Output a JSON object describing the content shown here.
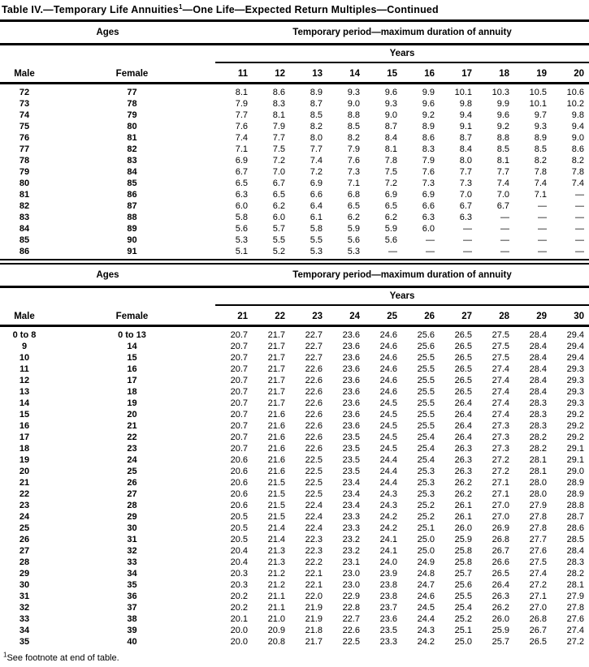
{
  "title": {
    "prefix": "Table IV.—Temporary Life Annuities",
    "superscript": "1",
    "suffix": "—One Life—Expected Return Multiples—Continued"
  },
  "header_labels": {
    "ages": "Ages",
    "period": "Temporary period—maximum duration of annuity",
    "years": "Years",
    "male": "Male",
    "female": "Female"
  },
  "footnote": {
    "superscript": "1",
    "text": "See footnote at end of table."
  },
  "colors": {
    "text": "#000000",
    "background": "#ffffff",
    "rule": "#000000"
  },
  "tables": [
    {
      "years": [
        "11",
        "12",
        "13",
        "14",
        "15",
        "16",
        "17",
        "18",
        "19",
        "20"
      ],
      "rows": [
        {
          "male": "72",
          "female": "77",
          "values": [
            "8.1",
            "8.6",
            "8.9",
            "9.3",
            "9.6",
            "9.9",
            "10.1",
            "10.3",
            "10.5",
            "10.6"
          ]
        },
        {
          "male": "73",
          "female": "78",
          "values": [
            "7.9",
            "8.3",
            "8.7",
            "9.0",
            "9.3",
            "9.6",
            "9.8",
            "9.9",
            "10.1",
            "10.2"
          ]
        },
        {
          "male": "74",
          "female": "79",
          "values": [
            "7.7",
            "8.1",
            "8.5",
            "8.8",
            "9.0",
            "9.2",
            "9.4",
            "9.6",
            "9.7",
            "9.8"
          ]
        },
        {
          "male": "75",
          "female": "80",
          "values": [
            "7.6",
            "7.9",
            "8.2",
            "8.5",
            "8.7",
            "8.9",
            "9.1",
            "9.2",
            "9.3",
            "9.4"
          ]
        },
        {
          "male": "76",
          "female": "81",
          "values": [
            "7.4",
            "7.7",
            "8.0",
            "8.2",
            "8.4",
            "8.6",
            "8.7",
            "8.8",
            "8.9",
            "9.0"
          ]
        },
        {
          "male": "77",
          "female": "82",
          "values": [
            "7.1",
            "7.5",
            "7.7",
            "7.9",
            "8.1",
            "8.3",
            "8.4",
            "8.5",
            "8.5",
            "8.6"
          ]
        },
        {
          "male": "78",
          "female": "83",
          "values": [
            "6.9",
            "7.2",
            "7.4",
            "7.6",
            "7.8",
            "7.9",
            "8.0",
            "8.1",
            "8.2",
            "8.2"
          ]
        },
        {
          "male": "79",
          "female": "84",
          "values": [
            "6.7",
            "7.0",
            "7.2",
            "7.3",
            "7.5",
            "7.6",
            "7.7",
            "7.7",
            "7.8",
            "7.8"
          ]
        },
        {
          "male": "80",
          "female": "85",
          "values": [
            "6.5",
            "6.7",
            "6.9",
            "7.1",
            "7.2",
            "7.3",
            "7.3",
            "7.4",
            "7.4",
            "7.4"
          ]
        },
        {
          "male": "81",
          "female": "86",
          "values": [
            "6.3",
            "6.5",
            "6.6",
            "6.8",
            "6.9",
            "6.9",
            "7.0",
            "7.0",
            "7.1",
            "—"
          ]
        },
        {
          "male": "82",
          "female": "87",
          "values": [
            "6.0",
            "6.2",
            "6.4",
            "6.5",
            "6.5",
            "6.6",
            "6.7",
            "6.7",
            "—",
            "—"
          ]
        },
        {
          "male": "83",
          "female": "88",
          "values": [
            "5.8",
            "6.0",
            "6.1",
            "6.2",
            "6.2",
            "6.3",
            "6.3",
            "—",
            "—",
            "—"
          ]
        },
        {
          "male": "84",
          "female": "89",
          "values": [
            "5.6",
            "5.7",
            "5.8",
            "5.9",
            "5.9",
            "6.0",
            "—",
            "—",
            "—",
            "—"
          ]
        },
        {
          "male": "85",
          "female": "90",
          "values": [
            "5.3",
            "5.5",
            "5.5",
            "5.6",
            "5.6",
            "—",
            "—",
            "—",
            "—",
            "—"
          ]
        },
        {
          "male": "86",
          "female": "91",
          "values": [
            "5.1",
            "5.2",
            "5.3",
            "5.3",
            "—",
            "—",
            "—",
            "—",
            "—",
            "—"
          ]
        }
      ]
    },
    {
      "years": [
        "21",
        "22",
        "23",
        "24",
        "25",
        "26",
        "27",
        "28",
        "29",
        "30"
      ],
      "rows": [
        {
          "male": "0 to 8",
          "female": "0 to 13",
          "values": [
            "20.7",
            "21.7",
            "22.7",
            "23.6",
            "24.6",
            "25.6",
            "26.5",
            "27.5",
            "28.4",
            "29.4"
          ]
        },
        {
          "male": "9",
          "female": "14",
          "values": [
            "20.7",
            "21.7",
            "22.7",
            "23.6",
            "24.6",
            "25.6",
            "26.5",
            "27.5",
            "28.4",
            "29.4"
          ]
        },
        {
          "male": "10",
          "female": "15",
          "values": [
            "20.7",
            "21.7",
            "22.7",
            "23.6",
            "24.6",
            "25.5",
            "26.5",
            "27.5",
            "28.4",
            "29.4"
          ]
        },
        {
          "male": "11",
          "female": "16",
          "values": [
            "20.7",
            "21.7",
            "22.6",
            "23.6",
            "24.6",
            "25.5",
            "26.5",
            "27.4",
            "28.4",
            "29.3"
          ]
        },
        {
          "male": "12",
          "female": "17",
          "values": [
            "20.7",
            "21.7",
            "22.6",
            "23.6",
            "24.6",
            "25.5",
            "26.5",
            "27.4",
            "28.4",
            "29.3"
          ]
        },
        {
          "male": "13",
          "female": "18",
          "values": [
            "20.7",
            "21.7",
            "22.6",
            "23.6",
            "24.6",
            "25.5",
            "26.5",
            "27.4",
            "28.4",
            "29.3"
          ]
        },
        {
          "male": "14",
          "female": "19",
          "values": [
            "20.7",
            "21.7",
            "22.6",
            "23.6",
            "24.5",
            "25.5",
            "26.4",
            "27.4",
            "28.3",
            "29.3"
          ]
        },
        {
          "male": "15",
          "female": "20",
          "values": [
            "20.7",
            "21.6",
            "22.6",
            "23.6",
            "24.5",
            "25.5",
            "26.4",
            "27.4",
            "28.3",
            "29.2"
          ]
        },
        {
          "male": "16",
          "female": "21",
          "values": [
            "20.7",
            "21.6",
            "22.6",
            "23.6",
            "24.5",
            "25.5",
            "26.4",
            "27.3",
            "28.3",
            "29.2"
          ]
        },
        {
          "male": "17",
          "female": "22",
          "values": [
            "20.7",
            "21.6",
            "22.6",
            "23.5",
            "24.5",
            "25.4",
            "26.4",
            "27.3",
            "28.2",
            "29.2"
          ]
        },
        {
          "male": "18",
          "female": "23",
          "values": [
            "20.7",
            "21.6",
            "22.6",
            "23.5",
            "24.5",
            "25.4",
            "26.3",
            "27.3",
            "28.2",
            "29.1"
          ]
        },
        {
          "male": "19",
          "female": "24",
          "values": [
            "20.6",
            "21.6",
            "22.5",
            "23.5",
            "24.4",
            "25.4",
            "26.3",
            "27.2",
            "28.1",
            "29.1"
          ]
        },
        {
          "male": "20",
          "female": "25",
          "values": [
            "20.6",
            "21.6",
            "22.5",
            "23.5",
            "24.4",
            "25.3",
            "26.3",
            "27.2",
            "28.1",
            "29.0"
          ]
        },
        {
          "male": "21",
          "female": "26",
          "values": [
            "20.6",
            "21.5",
            "22.5",
            "23.4",
            "24.4",
            "25.3",
            "26.2",
            "27.1",
            "28.0",
            "28.9"
          ]
        },
        {
          "male": "22",
          "female": "27",
          "values": [
            "20.6",
            "21.5",
            "22.5",
            "23.4",
            "24.3",
            "25.3",
            "26.2",
            "27.1",
            "28.0",
            "28.9"
          ]
        },
        {
          "male": "23",
          "female": "28",
          "values": [
            "20.6",
            "21.5",
            "22.4",
            "23.4",
            "24.3",
            "25.2",
            "26.1",
            "27.0",
            "27.9",
            "28.8"
          ]
        },
        {
          "male": "24",
          "female": "29",
          "values": [
            "20.5",
            "21.5",
            "22.4",
            "23.3",
            "24.2",
            "25.2",
            "26.1",
            "27.0",
            "27.8",
            "28.7"
          ]
        },
        {
          "male": "25",
          "female": "30",
          "values": [
            "20.5",
            "21.4",
            "22.4",
            "23.3",
            "24.2",
            "25.1",
            "26.0",
            "26.9",
            "27.8",
            "28.6"
          ]
        },
        {
          "male": "26",
          "female": "31",
          "values": [
            "20.5",
            "21.4",
            "22.3",
            "23.2",
            "24.1",
            "25.0",
            "25.9",
            "26.8",
            "27.7",
            "28.5"
          ]
        },
        {
          "male": "27",
          "female": "32",
          "values": [
            "20.4",
            "21.3",
            "22.3",
            "23.2",
            "24.1",
            "25.0",
            "25.8",
            "26.7",
            "27.6",
            "28.4"
          ]
        },
        {
          "male": "28",
          "female": "33",
          "values": [
            "20.4",
            "21.3",
            "22.2",
            "23.1",
            "24.0",
            "24.9",
            "25.8",
            "26.6",
            "27.5",
            "28.3"
          ]
        },
        {
          "male": "29",
          "female": "34",
          "values": [
            "20.3",
            "21.2",
            "22.1",
            "23.0",
            "23.9",
            "24.8",
            "25.7",
            "26.5",
            "27.4",
            "28.2"
          ]
        },
        {
          "male": "30",
          "female": "35",
          "values": [
            "20.3",
            "21.2",
            "22.1",
            "23.0",
            "23.8",
            "24.7",
            "25.6",
            "26.4",
            "27.2",
            "28.1"
          ]
        },
        {
          "male": "31",
          "female": "36",
          "values": [
            "20.2",
            "21.1",
            "22.0",
            "22.9",
            "23.8",
            "24.6",
            "25.5",
            "26.3",
            "27.1",
            "27.9"
          ]
        },
        {
          "male": "32",
          "female": "37",
          "values": [
            "20.2",
            "21.1",
            "21.9",
            "22.8",
            "23.7",
            "24.5",
            "25.4",
            "26.2",
            "27.0",
            "27.8"
          ]
        },
        {
          "male": "33",
          "female": "38",
          "values": [
            "20.1",
            "21.0",
            "21.9",
            "22.7",
            "23.6",
            "24.4",
            "25.2",
            "26.0",
            "26.8",
            "27.6"
          ]
        },
        {
          "male": "34",
          "female": "39",
          "values": [
            "20.0",
            "20.9",
            "21.8",
            "22.6",
            "23.5",
            "24.3",
            "25.1",
            "25.9",
            "26.7",
            "27.4"
          ]
        },
        {
          "male": "35",
          "female": "40",
          "values": [
            "20.0",
            "20.8",
            "21.7",
            "22.5",
            "23.3",
            "24.2",
            "25.0",
            "25.7",
            "26.5",
            "27.2"
          ]
        }
      ]
    }
  ]
}
